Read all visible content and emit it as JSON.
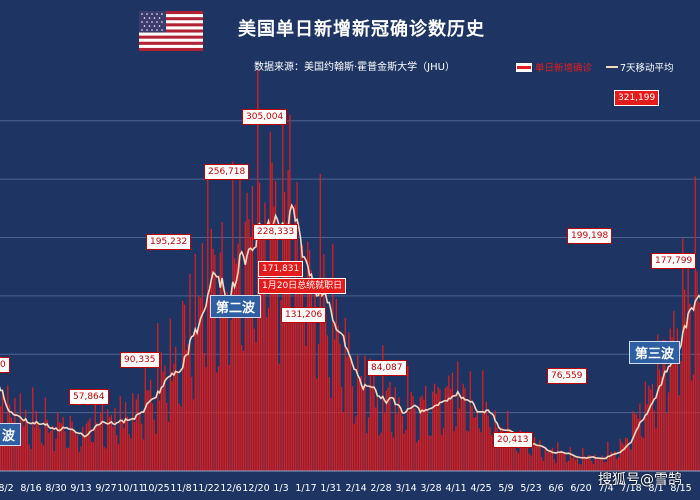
{
  "title": "美国单日新增新冠确诊数历史",
  "source": "数据来源：美国约翰斯·霍普金斯大学（JHU）",
  "watermark": "搜狐号@雪鹄",
  "colors": {
    "background": "#1e3563",
    "bar": "#e41c1c",
    "avg_line": "#f4d9bf",
    "grid": "#4c6590"
  },
  "legend": {
    "bar_label": "单日新增确诊",
    "line_label": "7天移动平均"
  },
  "annotations": {
    "peak_1": "305,004",
    "peak_2": "256,718",
    "peak_3": "228,333",
    "peak_4": "195,232",
    "peak_5": "171,831",
    "inauguration": "1月20日总统就职日",
    "peak_6": "131,206",
    "peak_7": "90,335",
    "peak_8": "57,864",
    "peak_9": "84,087",
    "peak_10": "20,413",
    "peak_11": "76,559",
    "peak_12": "199,198",
    "peak_13": "321,199",
    "peak_14": "177,799",
    "left_partial": "0"
  },
  "waves": {
    "first": "波",
    "second": "第二波",
    "third": "第三波"
  },
  "chart_data": {
    "type": "bar",
    "title": "美国单日新增新冠确诊数历史",
    "legend_position": "top-right",
    "grid": true,
    "ylim": [
      0,
      340000
    ],
    "x_tick_labels": [
      "8/2",
      "8/16",
      "8/30",
      "9/13",
      "9/27",
      "10/11",
      "10/25",
      "11/8",
      "11/22",
      "12/6",
      "12/20",
      "1/3",
      "1/17",
      "1/31",
      "2/14",
      "2/28",
      "3/14",
      "3/28",
      "4/11",
      "4/25",
      "5/9",
      "5/23",
      "6/6",
      "6/20",
      "7/4",
      "7/18",
      "8/1",
      "8/15"
    ],
    "anchor_points": [
      {
        "date": "7/27",
        "daily": 62000
      },
      {
        "date": "8/2",
        "daily": 55000
      },
      {
        "date": "8/16",
        "daily": 45000
      },
      {
        "date": "8/30",
        "daily": 40000
      },
      {
        "date": "9/13",
        "daily": 35000
      },
      {
        "date": "9/27",
        "daily": 42000
      },
      {
        "date": "10/11",
        "daily": 50000
      },
      {
        "date": "10/25",
        "daily": 72000
      },
      {
        "date": "11/8",
        "daily": 120000
      },
      {
        "date": "11/22",
        "daily": 170000
      },
      {
        "date": "12/6",
        "daily": 190000
      },
      {
        "date": "12/20",
        "daily": 210000
      },
      {
        "date": "1/3",
        "daily": 220000
      },
      {
        "date": "1/10",
        "daily": 245000
      },
      {
        "date": "1/17",
        "daily": 185000
      },
      {
        "date": "1/31",
        "daily": 135000
      },
      {
        "date": "2/14",
        "daily": 88000
      },
      {
        "date": "2/28",
        "daily": 65000
      },
      {
        "date": "3/14",
        "daily": 55000
      },
      {
        "date": "3/28",
        "daily": 62000
      },
      {
        "date": "4/11",
        "daily": 70000
      },
      {
        "date": "4/25",
        "daily": 55000
      },
      {
        "date": "5/9",
        "daily": 38000
      },
      {
        "date": "5/23",
        "daily": 25000
      },
      {
        "date": "6/6",
        "daily": 15000
      },
      {
        "date": "6/20",
        "daily": 12000
      },
      {
        "date": "7/4",
        "daily": 14000
      },
      {
        "date": "7/18",
        "daily": 35000
      },
      {
        "date": "8/1",
        "daily": 85000
      },
      {
        "date": "8/15",
        "daily": 140000
      },
      {
        "date": "8/29",
        "daily": 160000
      },
      {
        "date": "9/5",
        "daily": 120000
      }
    ],
    "labeled_values": [
      {
        "date": "1/8",
        "value": 305004
      },
      {
        "date": "12/11",
        "value": 256718
      },
      {
        "date": "1/11",
        "value": 228333
      },
      {
        "date": "11/20",
        "value": 195232
      },
      {
        "date": "1/20",
        "value": 171831
      },
      {
        "date": "1/26",
        "value": 131206
      },
      {
        "date": "10/30",
        "value": 90335
      },
      {
        "date": "9/25",
        "value": 57864
      },
      {
        "date": "4/9",
        "value": 84087
      },
      {
        "date": "6/14",
        "value": 20413
      },
      {
        "date": "7/26",
        "value": 76559
      },
      {
        "date": "8/16",
        "value": 199198
      },
      {
        "date": "8/30",
        "value": 321199
      },
      {
        "date": "9/10",
        "value": 177799
      }
    ]
  }
}
